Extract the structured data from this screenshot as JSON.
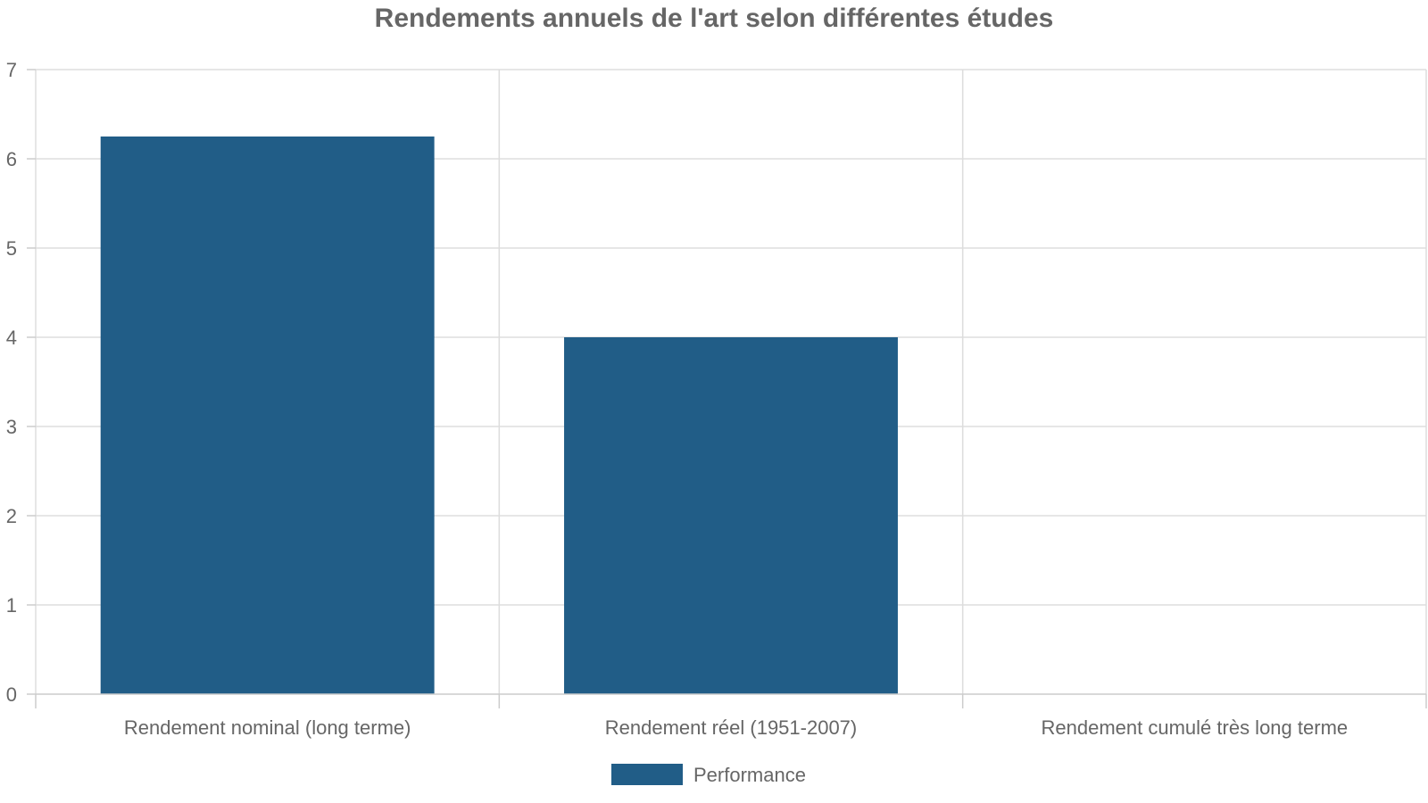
{
  "chart_data": {
    "type": "bar",
    "title": "Rendements annuels de l'art selon différentes études",
    "categories": [
      "Rendement nominal (long terme)",
      "Rendement réel (1951-2007)",
      "Rendement cumulé très long terme"
    ],
    "series": [
      {
        "name": "Performance",
        "values": [
          6.25,
          4.0,
          0
        ],
        "color": "#215d87"
      }
    ],
    "ylim": [
      0,
      7
    ],
    "yticks": [
      0,
      1,
      2,
      3,
      4,
      5,
      6,
      7
    ],
    "grid": true,
    "legend_position": "bottom-center"
  }
}
